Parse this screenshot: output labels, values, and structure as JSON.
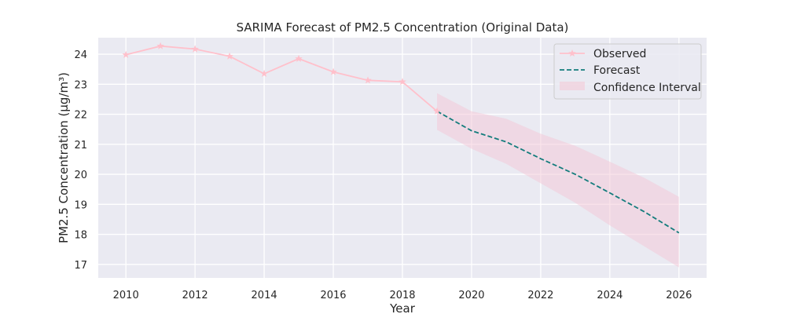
{
  "chart_data": {
    "type": "line",
    "title": "SARIMA Forecast of PM2.5 Concentration (Original Data)",
    "xlabel": "Year",
    "ylabel": "PM2.5 Concentration (µg/m³)",
    "xlim": [
      2009.2,
      2026.8
    ],
    "ylim": [
      16.55,
      24.55
    ],
    "xticks": [
      2010,
      2012,
      2014,
      2016,
      2018,
      2020,
      2022,
      2024,
      2026
    ],
    "yticks": [
      17,
      18,
      19,
      20,
      21,
      22,
      23,
      24
    ],
    "grid": true,
    "legend_position": "top-right",
    "series": [
      {
        "name": "Observed",
        "style": "line-star",
        "color": "#ffc0cb",
        "x": [
          2010,
          2011,
          2012,
          2013,
          2014,
          2015,
          2016,
          2017,
          2018,
          2019
        ],
        "y": [
          23.98,
          24.27,
          24.17,
          23.93,
          23.35,
          23.85,
          23.41,
          23.13,
          23.08,
          22.1
        ]
      },
      {
        "name": "Forecast",
        "style": "dashed",
        "color": "#137c7c",
        "x": [
          2019,
          2020,
          2021,
          2022,
          2023,
          2024,
          2025,
          2026
        ],
        "y": [
          22.1,
          21.45,
          21.08,
          20.52,
          20.0,
          19.38,
          18.75,
          18.05
        ]
      },
      {
        "name": "Confidence Interval",
        "style": "band",
        "color": "#f4c6d6",
        "x": [
          2019,
          2020,
          2021,
          2022,
          2023,
          2024,
          2025,
          2026
        ],
        "lower": [
          21.48,
          20.85,
          20.35,
          19.7,
          19.05,
          18.3,
          17.6,
          16.9
        ],
        "upper": [
          22.7,
          22.1,
          21.85,
          21.35,
          20.95,
          20.42,
          19.88,
          19.25
        ]
      }
    ]
  }
}
